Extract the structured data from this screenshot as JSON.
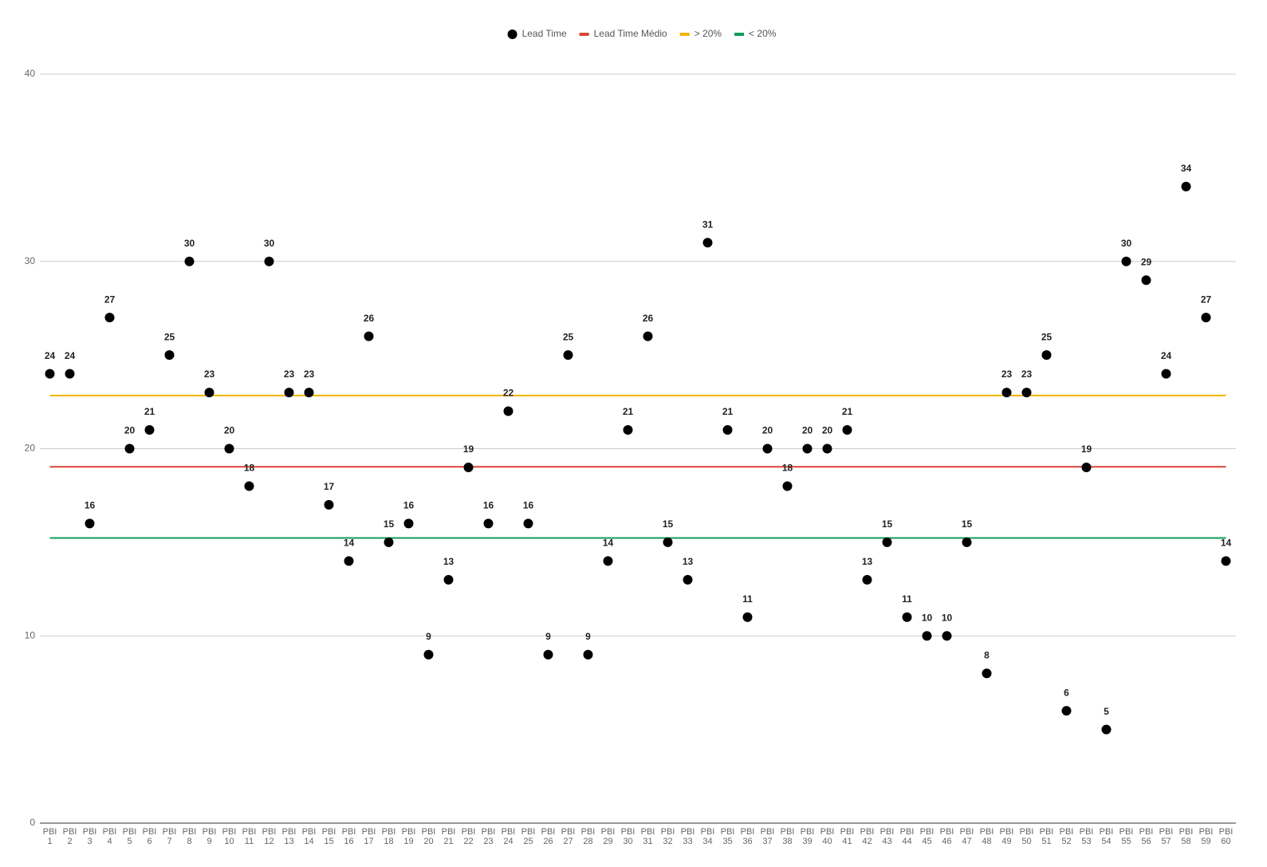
{
  "chart_data": {
    "type": "scatter",
    "categories": [
      "PBI 1",
      "PBI 2",
      "PBI 3",
      "PBI 4",
      "PBI 5",
      "PBI 6",
      "PBI 7",
      "PBI 8",
      "PBI 9",
      "PBI 10",
      "PBI 11",
      "PBI 12",
      "PBI 13",
      "PBI 14",
      "PBI 15",
      "PBI 16",
      "PBI 17",
      "PBI 18",
      "PBI 19",
      "PBI 20",
      "PBI 21",
      "PBI 22",
      "PBI 23",
      "PBI 24",
      "PBI 25",
      "PBI 26",
      "PBI 27",
      "PBI 28",
      "PBI 29",
      "PBI 30",
      "PBI 31",
      "PBI 32",
      "PBI 33",
      "PBI 34",
      "PBI 35",
      "PBI 36",
      "PBI 37",
      "PBI 38",
      "PBI 39",
      "PBI 40",
      "PBI 41",
      "PBI 42",
      "PBI 43",
      "PBI 44",
      "PBI 45",
      "PBI 46",
      "PBI 47",
      "PBI 48",
      "PBI 49",
      "PBI 50",
      "PBI 51",
      "PBI 52",
      "PBI 53",
      "PBI 54",
      "PBI 55",
      "PBI 56",
      "PBI 57",
      "PBI 58",
      "PBI 59",
      "PBI 60"
    ],
    "series": [
      {
        "name": "Lead Time",
        "color": "#000000",
        "values": [
          24,
          24,
          16,
          27,
          20,
          21,
          25,
          30,
          23,
          20,
          18,
          30,
          23,
          23,
          17,
          14,
          26,
          15,
          16,
          9,
          13,
          19,
          16,
          22,
          16,
          9,
          25,
          9,
          14,
          21,
          26,
          15,
          13,
          31,
          21,
          11,
          20,
          18,
          20,
          20,
          21,
          13,
          15,
          11,
          10,
          10,
          15,
          8,
          23,
          23,
          25,
          6,
          19,
          5,
          30,
          29,
          24,
          34,
          27,
          14
        ]
      }
    ],
    "reference_lines": [
      {
        "name": "Lead Time Médio",
        "color": "#db4437",
        "value": 19.03
      },
      {
        "name": "> 20%",
        "color": "#f4b400",
        "value": 22.84
      },
      {
        "name": "< 20%",
        "color": "#0f9d58",
        "value": 15.23
      }
    ],
    "ylim": [
      0,
      40
    ],
    "yticks": [
      0,
      10,
      20,
      30,
      40
    ],
    "grid": true,
    "legend": "top"
  }
}
